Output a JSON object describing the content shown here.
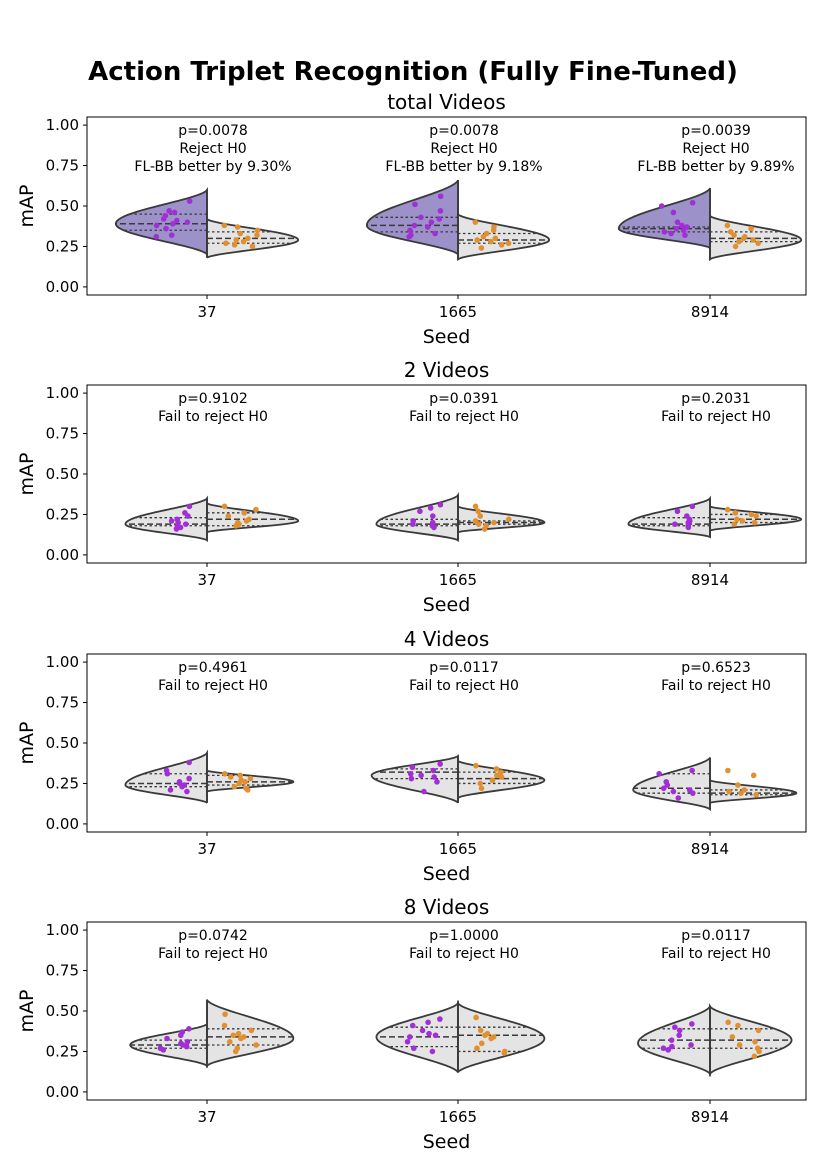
{
  "figure_title": "Action Triplet Recognition (Fully Fine-Tuned)",
  "colors": {
    "highlight_fill": "#9c91c9",
    "neutral_fill": "#e4e4e4",
    "outline": "#3a3a3a",
    "left_points": "#a12ed6",
    "right_points": "#e0902f"
  },
  "chart_data": [
    {
      "type": "violin",
      "title": "total Videos",
      "xlabel": "Seed",
      "ylabel": "mAP",
      "categories": [
        "37",
        "1665",
        "8914"
      ],
      "ylim": [
        -0.05,
        1.05
      ],
      "yticks": [
        "0.00",
        "0.25",
        "0.50",
        "0.75",
        "1.00"
      ],
      "groups": [
        {
          "seed": "37",
          "annotation": [
            "p=0.0078",
            "Reject H0",
            "FL-BB better by 9.30%"
          ],
          "left": {
            "highlight": true,
            "min": 0.2,
            "max": 0.6,
            "mode": 0.39,
            "halfwidth": 0.95,
            "q1": 0.35,
            "median": 0.39,
            "q3": 0.45,
            "points": [
              0.53,
              0.47,
              0.46,
              0.44,
              0.42,
              0.41,
              0.4,
              0.39,
              0.38,
              0.36,
              0.32,
              0.31
            ]
          },
          "right": {
            "highlight": false,
            "min": 0.18,
            "max": 0.42,
            "mode": 0.29,
            "halfwidth": 0.95,
            "q1": 0.27,
            "median": 0.3,
            "q3": 0.34,
            "points": [
              0.38,
              0.37,
              0.35,
              0.33,
              0.32,
              0.3,
              0.29,
              0.28,
              0.27,
              0.26,
              0.25
            ]
          }
        },
        {
          "seed": "1665",
          "annotation": [
            "p=0.0078",
            "Reject H0",
            "FL-BB better by 9.18%"
          ],
          "left": {
            "highlight": true,
            "min": 0.2,
            "max": 0.66,
            "mode": 0.38,
            "halfwidth": 0.95,
            "q1": 0.34,
            "median": 0.38,
            "q3": 0.43,
            "points": [
              0.56,
              0.51,
              0.47,
              0.43,
              0.42,
              0.4,
              0.38,
              0.37,
              0.35,
              0.33,
              0.32,
              0.31
            ]
          },
          "right": {
            "highlight": false,
            "min": 0.17,
            "max": 0.45,
            "mode": 0.29,
            "halfwidth": 0.95,
            "q1": 0.27,
            "median": 0.29,
            "q3": 0.33,
            "points": [
              0.4,
              0.37,
              0.35,
              0.33,
              0.31,
              0.3,
              0.29,
              0.28,
              0.27,
              0.26,
              0.24
            ]
          }
        },
        {
          "seed": "8914",
          "annotation": [
            "p=0.0039",
            "Reject H0",
            "FL-BB better by 9.89%"
          ],
          "left": {
            "highlight": true,
            "min": 0.24,
            "max": 0.61,
            "mode": 0.36,
            "halfwidth": 0.95,
            "q1": 0.34,
            "median": 0.36,
            "q3": 0.37,
            "points": [
              0.52,
              0.5,
              0.46,
              0.4,
              0.38,
              0.37,
              0.36,
              0.35,
              0.34,
              0.33,
              0.32
            ]
          },
          "right": {
            "highlight": false,
            "min": 0.17,
            "max": 0.44,
            "mode": 0.29,
            "halfwidth": 0.95,
            "q1": 0.28,
            "median": 0.3,
            "q3": 0.34,
            "points": [
              0.38,
              0.36,
              0.34,
              0.32,
              0.31,
              0.3,
              0.29,
              0.28,
              0.27,
              0.25
            ]
          }
        }
      ]
    },
    {
      "type": "violin",
      "title": "2 Videos",
      "xlabel": "Seed",
      "ylabel": "mAP",
      "categories": [
        "37",
        "1665",
        "8914"
      ],
      "ylim": [
        -0.05,
        1.05
      ],
      "yticks": [
        "0.00",
        "0.25",
        "0.50",
        "0.75",
        "1.00"
      ],
      "groups": [
        {
          "seed": "37",
          "annotation": [
            "p=0.9102",
            "Fail to reject H0"
          ],
          "left": {
            "highlight": false,
            "min": 0.09,
            "max": 0.35,
            "mode": 0.19,
            "halfwidth": 0.85,
            "q1": 0.18,
            "median": 0.19,
            "q3": 0.23,
            "points": [
              0.3,
              0.26,
              0.24,
              0.22,
              0.21,
              0.2,
              0.19,
              0.18,
              0.17,
              0.16
            ]
          },
          "right": {
            "highlight": false,
            "min": 0.14,
            "max": 0.32,
            "mode": 0.21,
            "halfwidth": 0.95,
            "q1": 0.18,
            "median": 0.22,
            "q3": 0.26,
            "points": [
              0.3,
              0.28,
              0.26,
              0.24,
              0.22,
              0.21,
              0.2,
              0.19,
              0.18
            ]
          }
        },
        {
          "seed": "1665",
          "annotation": [
            "p=0.0391",
            "Fail to reject H0"
          ],
          "left": {
            "highlight": false,
            "min": 0.09,
            "max": 0.37,
            "mode": 0.19,
            "halfwidth": 0.85,
            "q1": 0.18,
            "median": 0.19,
            "q3": 0.22,
            "points": [
              0.31,
              0.29,
              0.27,
              0.24,
              0.21,
              0.2,
              0.19,
              0.18,
              0.17
            ]
          },
          "right": {
            "highlight": false,
            "min": 0.14,
            "max": 0.3,
            "mode": 0.2,
            "halfwidth": 0.9,
            "q1": 0.19,
            "median": 0.2,
            "q3": 0.21,
            "points": [
              0.3,
              0.27,
              0.24,
              0.22,
              0.21,
              0.2,
              0.19,
              0.18,
              0.16
            ]
          }
        },
        {
          "seed": "8914",
          "annotation": [
            "p=0.2031",
            "Fail to reject H0"
          ],
          "left": {
            "highlight": false,
            "min": 0.11,
            "max": 0.35,
            "mode": 0.19,
            "halfwidth": 0.85,
            "q1": 0.18,
            "median": 0.19,
            "q3": 0.23,
            "points": [
              0.3,
              0.27,
              0.24,
              0.22,
              0.21,
              0.2,
              0.19,
              0.18,
              0.17
            ]
          },
          "right": {
            "highlight": false,
            "min": 0.15,
            "max": 0.3,
            "mode": 0.22,
            "halfwidth": 0.95,
            "q1": 0.2,
            "median": 0.22,
            "q3": 0.25,
            "points": [
              0.28,
              0.26,
              0.25,
              0.24,
              0.22,
              0.21,
              0.2,
              0.19
            ]
          }
        }
      ]
    },
    {
      "type": "violin",
      "title": "4 Videos",
      "xlabel": "Seed",
      "ylabel": "mAP",
      "categories": [
        "37",
        "1665",
        "8914"
      ],
      "ylim": [
        -0.05,
        1.05
      ],
      "yticks": [
        "0.00",
        "0.25",
        "0.50",
        "0.75",
        "1.00"
      ],
      "groups": [
        {
          "seed": "37",
          "annotation": [
            "p=0.4961",
            "Fail to reject H0"
          ],
          "left": {
            "highlight": false,
            "min": 0.13,
            "max": 0.44,
            "mode": 0.24,
            "halfwidth": 0.85,
            "q1": 0.23,
            "median": 0.25,
            "q3": 0.31,
            "points": [
              0.38,
              0.33,
              0.31,
              0.28,
              0.26,
              0.25,
              0.24,
              0.23,
              0.21,
              0.2
            ]
          },
          "right": {
            "highlight": false,
            "min": 0.2,
            "max": 0.33,
            "mode": 0.26,
            "halfwidth": 0.9,
            "q1": 0.24,
            "median": 0.26,
            "q3": 0.3,
            "points": [
              0.31,
              0.3,
              0.29,
              0.28,
              0.27,
              0.26,
              0.25,
              0.23,
              0.22,
              0.21
            ]
          }
        },
        {
          "seed": "1665",
          "annotation": [
            "p=0.0117",
            "Fail to reject H0"
          ],
          "left": {
            "highlight": false,
            "min": 0.13,
            "max": 0.42,
            "mode": 0.3,
            "halfwidth": 0.9,
            "q1": 0.28,
            "median": 0.32,
            "q3": 0.34,
            "points": [
              0.37,
              0.35,
              0.33,
              0.31,
              0.3,
              0.29,
              0.28,
              0.26,
              0.2
            ]
          },
          "right": {
            "highlight": false,
            "min": 0.16,
            "max": 0.39,
            "mode": 0.27,
            "halfwidth": 0.9,
            "q1": 0.25,
            "median": 0.28,
            "q3": 0.32,
            "points": [
              0.36,
              0.34,
              0.32,
              0.3,
              0.29,
              0.27,
              0.25,
              0.22
            ]
          }
        },
        {
          "seed": "8914",
          "annotation": [
            "p=0.6523",
            "Fail to reject H0"
          ],
          "left": {
            "highlight": false,
            "min": 0.09,
            "max": 0.41,
            "mode": 0.21,
            "halfwidth": 0.8,
            "q1": 0.19,
            "median": 0.22,
            "q3": 0.31,
            "points": [
              0.33,
              0.31,
              0.26,
              0.24,
              0.22,
              0.21,
              0.2,
              0.19,
              0.16
            ]
          },
          "right": {
            "highlight": false,
            "min": 0.13,
            "max": 0.27,
            "mode": 0.19,
            "halfwidth": 0.9,
            "q1": 0.18,
            "median": 0.19,
            "q3": 0.21,
            "points": [
              0.33,
              0.3,
              0.24,
              0.21,
              0.2,
              0.19,
              0.18
            ]
          }
        }
      ]
    },
    {
      "type": "violin",
      "title": "8 Videos",
      "xlabel": "Seed",
      "ylabel": "mAP",
      "categories": [
        "37",
        "1665",
        "8914"
      ],
      "ylim": [
        -0.05,
        1.05
      ],
      "yticks": [
        "0.00",
        "0.25",
        "0.50",
        "0.75",
        "1.00"
      ],
      "groups": [
        {
          "seed": "37",
          "annotation": [
            "p=0.0742",
            "Fail to reject H0"
          ],
          "left": {
            "highlight": false,
            "min": 0.16,
            "max": 0.42,
            "mode": 0.29,
            "halfwidth": 0.8,
            "q1": 0.27,
            "median": 0.29,
            "q3": 0.32,
            "points": [
              0.39,
              0.37,
              0.35,
              0.33,
              0.31,
              0.3,
              0.29,
              0.28,
              0.27,
              0.26
            ]
          },
          "right": {
            "highlight": false,
            "min": 0.16,
            "max": 0.57,
            "mode": 0.33,
            "halfwidth": 0.9,
            "q1": 0.29,
            "median": 0.34,
            "q3": 0.39,
            "points": [
              0.48,
              0.41,
              0.38,
              0.36,
              0.35,
              0.34,
              0.33,
              0.31,
              0.29,
              0.27,
              0.25
            ]
          }
        },
        {
          "seed": "1665",
          "annotation": [
            "p=1.0000",
            "Fail to reject H0"
          ],
          "left": {
            "highlight": false,
            "min": 0.12,
            "max": 0.55,
            "mode": 0.34,
            "halfwidth": 0.85,
            "q1": 0.28,
            "median": 0.34,
            "q3": 0.4,
            "points": [
              0.45,
              0.43,
              0.41,
              0.38,
              0.36,
              0.35,
              0.34,
              0.31,
              0.27,
              0.25
            ]
          },
          "right": {
            "highlight": false,
            "min": 0.12,
            "max": 0.55,
            "mode": 0.33,
            "halfwidth": 0.9,
            "q1": 0.25,
            "median": 0.35,
            "q3": 0.4,
            "points": [
              0.46,
              0.38,
              0.36,
              0.35,
              0.34,
              0.33,
              0.3,
              0.27,
              0.25,
              0.24
            ]
          }
        },
        {
          "seed": "8914",
          "annotation": [
            "p=0.0117",
            "Fail to reject H0"
          ],
          "left": {
            "highlight": false,
            "min": 0.11,
            "max": 0.53,
            "mode": 0.3,
            "halfwidth": 0.75,
            "q1": 0.27,
            "median": 0.32,
            "q3": 0.39,
            "points": [
              0.42,
              0.4,
              0.38,
              0.35,
              0.32,
              0.29,
              0.28,
              0.27,
              0.26
            ]
          },
          "right": {
            "highlight": false,
            "min": 0.11,
            "max": 0.53,
            "mode": 0.32,
            "halfwidth": 0.85,
            "q1": 0.27,
            "median": 0.32,
            "q3": 0.39,
            "points": [
              0.43,
              0.41,
              0.38,
              0.34,
              0.31,
              0.29,
              0.27,
              0.25,
              0.22
            ]
          }
        }
      ]
    }
  ]
}
